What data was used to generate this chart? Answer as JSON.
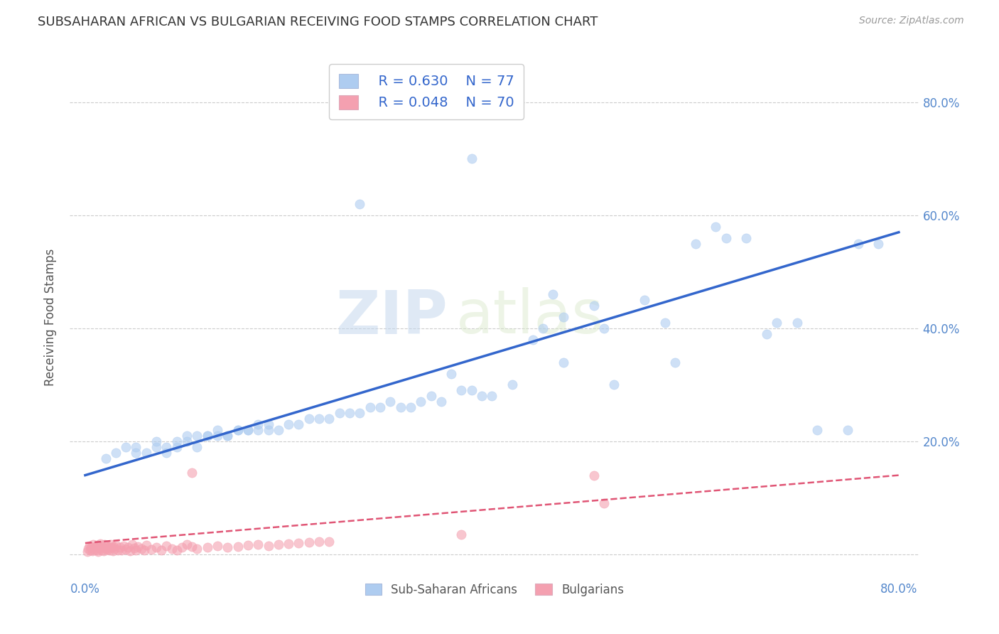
{
  "title": "SUBSAHARAN AFRICAN VS BULGARIAN RECEIVING FOOD STAMPS CORRELATION CHART",
  "source": "Source: ZipAtlas.com",
  "ylabel": "Receiving Food Stamps",
  "legend_blue_r": "R = 0.630",
  "legend_blue_n": "N = 77",
  "legend_pink_r": "R = 0.048",
  "legend_pink_n": "N = 70",
  "legend_blue_label": "Sub-Saharan Africans",
  "legend_pink_label": "Bulgarians",
  "blue_color": "#aeccf0",
  "pink_color": "#f4a0b0",
  "blue_line_color": "#3366cc",
  "pink_line_color": "#e05575",
  "watermark_zip": "ZIP",
  "watermark_atlas": "atlas",
  "blue_scatter_x": [
    2,
    3,
    4,
    5,
    5,
    6,
    7,
    7,
    8,
    8,
    9,
    9,
    10,
    10,
    11,
    11,
    12,
    12,
    13,
    13,
    14,
    14,
    15,
    15,
    16,
    16,
    17,
    17,
    18,
    18,
    19,
    20,
    21,
    22,
    23,
    24,
    25,
    26,
    27,
    28,
    29,
    30,
    31,
    32,
    33,
    34,
    35,
    36,
    37,
    38,
    39,
    40,
    42,
    44,
    45,
    46,
    47,
    50,
    52,
    55,
    57,
    58,
    60,
    62,
    63,
    65,
    67,
    68,
    70,
    72,
    75,
    76,
    78,
    47,
    38,
    27,
    51
  ],
  "blue_scatter_y": [
    17,
    18,
    19,
    18,
    19,
    18,
    19,
    20,
    19,
    18,
    20,
    19,
    21,
    20,
    19,
    21,
    21,
    21,
    22,
    21,
    21,
    21,
    22,
    22,
    22,
    22,
    23,
    22,
    22,
    23,
    22,
    23,
    23,
    24,
    24,
    24,
    25,
    25,
    25,
    26,
    26,
    27,
    26,
    26,
    27,
    28,
    27,
    32,
    29,
    29,
    28,
    28,
    30,
    38,
    40,
    46,
    34,
    44,
    30,
    45,
    41,
    34,
    55,
    58,
    56,
    56,
    39,
    41,
    41,
    22,
    22,
    55,
    55,
    42,
    70,
    62,
    40
  ],
  "pink_scatter_x": [
    0.2,
    0.3,
    0.4,
    0.5,
    0.6,
    0.7,
    0.8,
    0.9,
    1.0,
    1.1,
    1.2,
    1.3,
    1.4,
    1.5,
    1.6,
    1.7,
    1.8,
    1.9,
    2.0,
    2.1,
    2.2,
    2.3,
    2.4,
    2.5,
    2.6,
    2.7,
    2.8,
    2.9,
    3.0,
    3.2,
    3.4,
    3.6,
    3.8,
    4.0,
    4.2,
    4.4,
    4.6,
    4.8,
    5.0,
    5.2,
    5.5,
    5.8,
    6.0,
    6.5,
    7.0,
    7.5,
    8.0,
    8.5,
    9.0,
    9.5,
    10.0,
    10.5,
    11.0,
    12.0,
    13.0,
    14.0,
    15.0,
    16.0,
    17.0,
    18.0,
    19.0,
    20.0,
    21.0,
    22.0,
    23.0,
    24.0,
    37.0,
    50.0,
    51.0,
    10.5
  ],
  "pink_scatter_y": [
    0.5,
    1.0,
    1.5,
    0.8,
    1.2,
    0.6,
    1.8,
    0.9,
    1.3,
    0.7,
    1.6,
    0.5,
    1.1,
    1.9,
    0.8,
    1.4,
    0.6,
    1.7,
    1.0,
    1.5,
    0.9,
    1.3,
    0.7,
    1.8,
    1.2,
    0.6,
    1.4,
    1.0,
    1.6,
    0.8,
    1.2,
    0.7,
    1.5,
    0.9,
    1.3,
    0.6,
    1.7,
    1.1,
    0.8,
    1.4,
    1.0,
    0.7,
    1.6,
    0.9,
    1.2,
    0.8,
    1.5,
    1.0,
    0.7,
    1.3,
    1.8,
    1.4,
    1.0,
    1.2,
    1.5,
    1.3,
    1.4,
    1.6,
    1.8,
    1.5,
    1.7,
    1.9,
    2.0,
    2.1,
    2.2,
    2.3,
    3.5,
    14.0,
    9.0,
    14.5
  ],
  "xlim": [
    -1.5,
    82
  ],
  "ylim": [
    -4,
    88
  ],
  "blue_line_x": [
    0,
    80
  ],
  "blue_line_y": [
    14,
    57
  ],
  "pink_line_x": [
    0,
    80
  ],
  "pink_line_y": [
    2.0,
    14.0
  ],
  "xtick_positions": [
    0,
    10,
    20,
    30,
    40,
    50,
    60,
    70,
    80
  ],
  "ytick_positions": [
    0,
    20,
    40,
    60,
    80
  ],
  "grid_yticks": [
    0,
    20,
    40,
    60,
    80
  ]
}
